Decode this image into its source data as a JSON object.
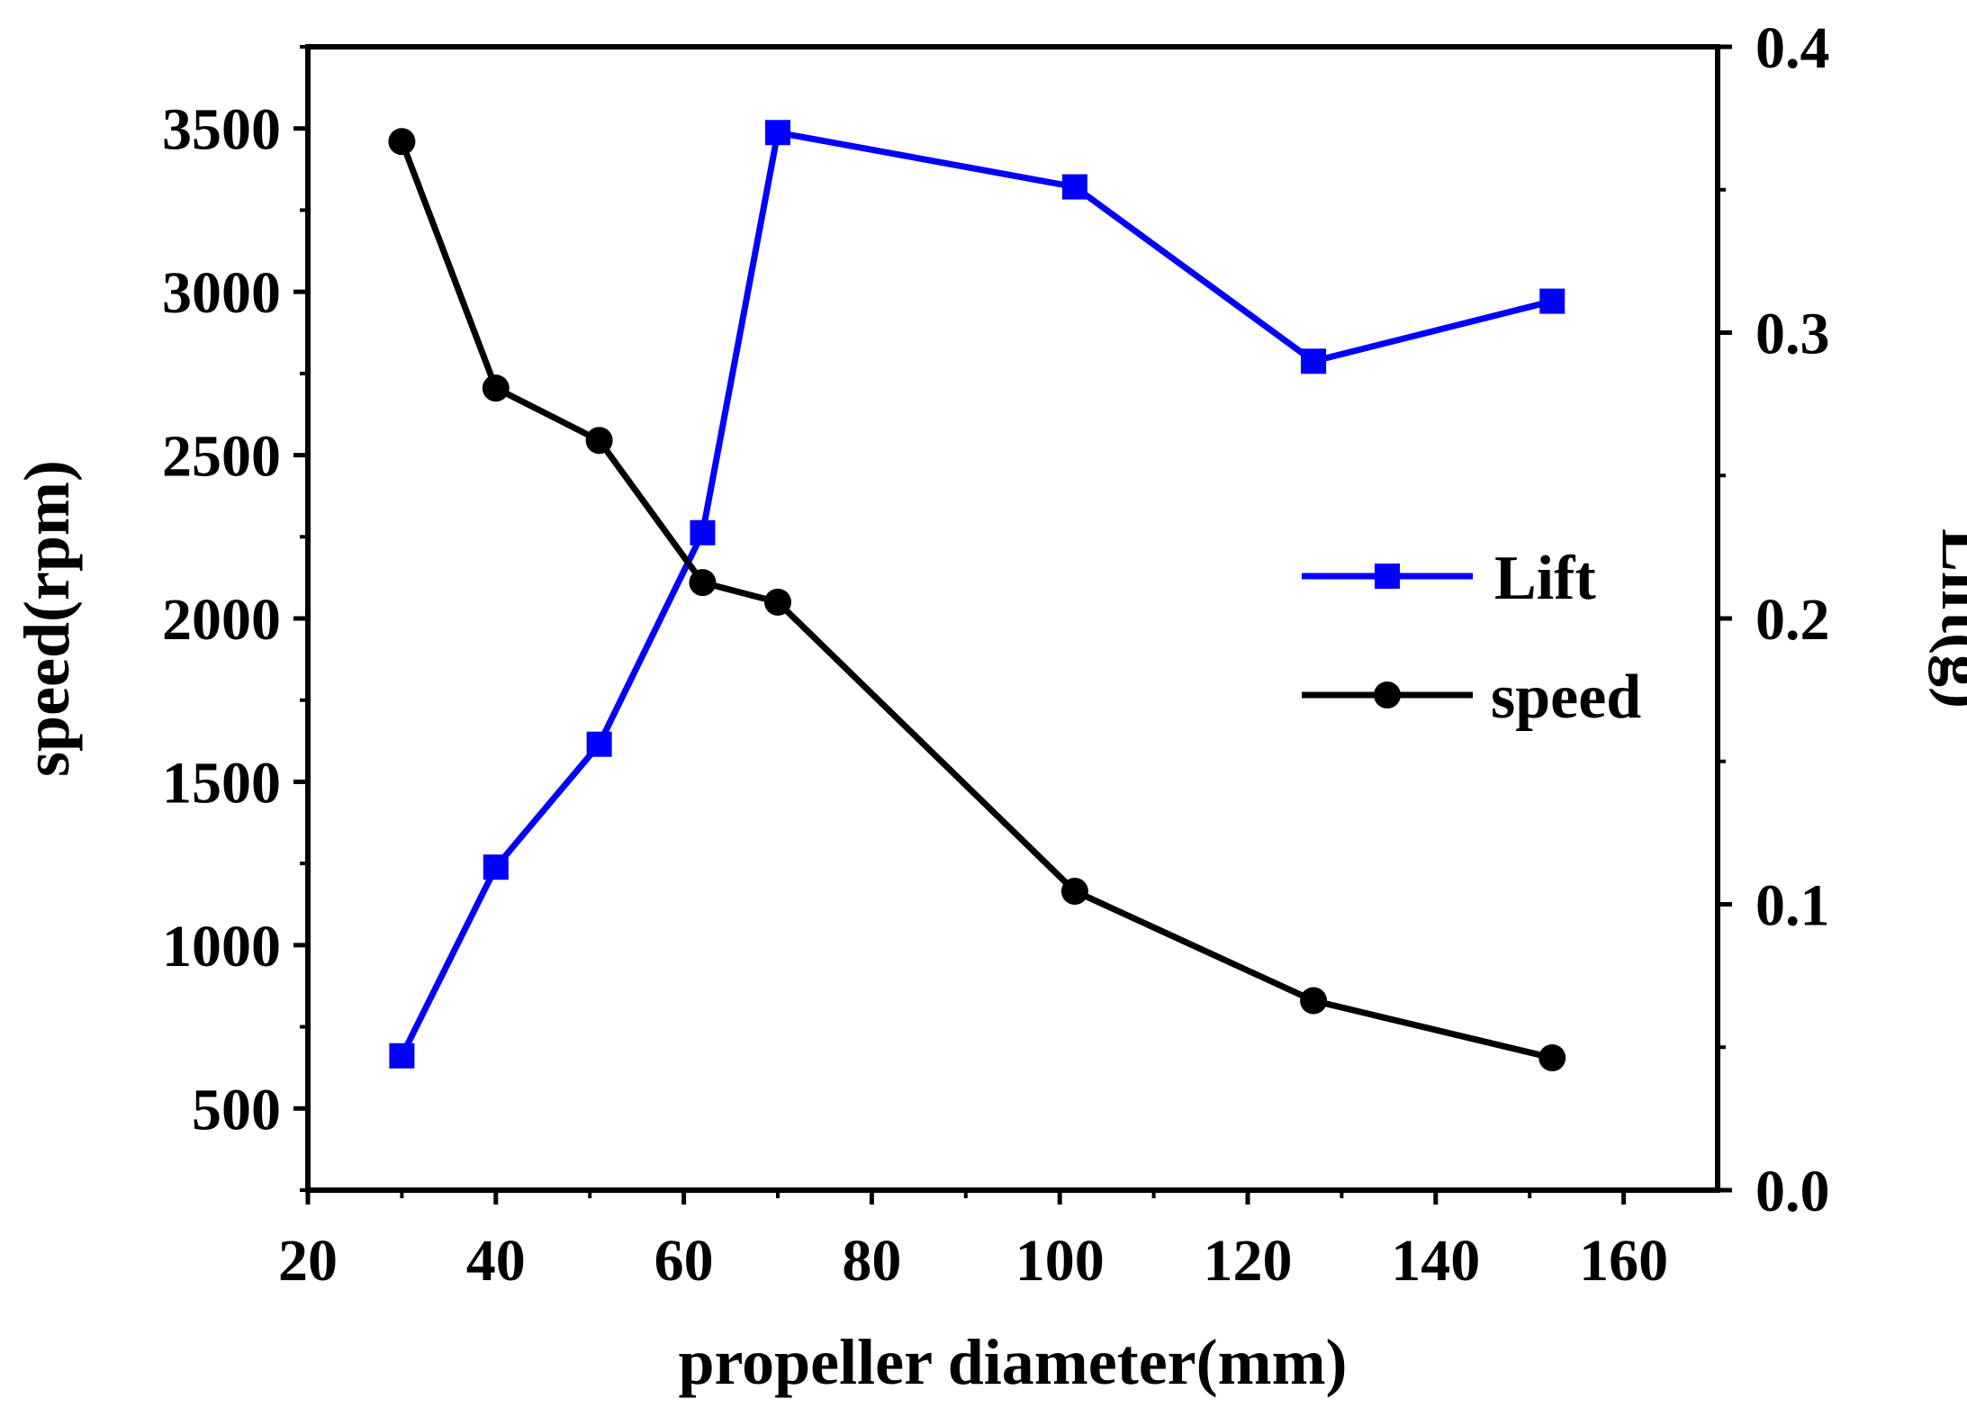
{
  "chart_data": {
    "type": "line",
    "title": "",
    "xlabel": "propeller diameter(mm)",
    "ylabel_left": "speed(rpm)",
    "ylabel_right": "Lift(g)",
    "xlim": [
      20,
      170
    ],
    "ylim_left": [
      250,
      3750
    ],
    "ylim_right": [
      0.0,
      0.4
    ],
    "x_ticks": [
      20,
      40,
      60,
      80,
      100,
      120,
      140,
      160
    ],
    "x_tick_labels": [
      "20",
      "40",
      "60",
      "80",
      "100",
      "120",
      "140",
      "160"
    ],
    "y_left_ticks": [
      500,
      1000,
      1500,
      2000,
      2500,
      3000,
      3500
    ],
    "y_left_tick_labels": [
      "500",
      "1000",
      "1500",
      "2000",
      "2500",
      "3000",
      "3500"
    ],
    "y_right_ticks": [
      0.0,
      0.1,
      0.2,
      0.3,
      0.4
    ],
    "y_right_tick_labels": [
      "0.0",
      "0.1",
      "0.2",
      "0.3",
      "0.4"
    ],
    "legend_position": "center-right",
    "series": [
      {
        "name": "Lift",
        "axis": "right",
        "color": "#0000ff",
        "marker": "square",
        "x": [
          30,
          40,
          51,
          62,
          70,
          101.6,
          127,
          152.4
        ],
        "values": [
          0.047,
          0.113,
          0.156,
          0.23,
          0.37,
          0.351,
          0.29,
          0.311
        ]
      },
      {
        "name": "speed",
        "axis": "left",
        "color": "#000000",
        "marker": "circle",
        "x": [
          30,
          40,
          51,
          62,
          70,
          101.6,
          127,
          152.4
        ],
        "values": [
          3460,
          2705,
          2545,
          2110,
          2050,
          1165,
          830,
          655
        ]
      }
    ]
  }
}
